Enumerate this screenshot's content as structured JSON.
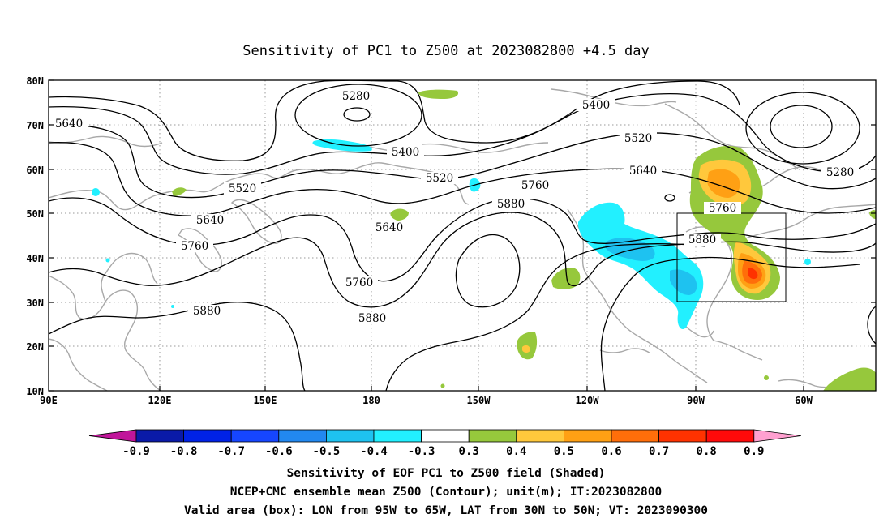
{
  "title": "Sensitivity of PC1 to Z500 at 2023082800 +4.5 day",
  "lat_labels": [
    "80N",
    "70N",
    "60N",
    "50N",
    "40N",
    "30N",
    "20N",
    "10N"
  ],
  "lon_labels": [
    "90E",
    "120E",
    "150E",
    "180",
    "150W",
    "120W",
    "90W",
    "60W"
  ],
  "contour_labels": [
    "5280",
    "5400",
    "5520",
    "5640",
    "5760",
    "5880"
  ],
  "colorbar": {
    "labels": [
      "-0.9",
      "-0.8",
      "-0.7",
      "-0.6",
      "-0.5",
      "-0.4",
      "-0.3",
      "0.3",
      "0.4",
      "0.5",
      "0.6",
      "0.7",
      "0.8",
      "0.9"
    ],
    "colors": [
      "#c0169a",
      "#0a1aa8",
      "#0022e6",
      "#1646ff",
      "#2288f0",
      "#1ec2f0",
      "#22f0ff",
      "#ffffff",
      "#96c83c",
      "#ffc83c",
      "#ffa014",
      "#ff6e0a",
      "#ff3200",
      "#ff0a0a",
      "#ffa0d0"
    ]
  },
  "valid_box": {
    "lon_from": "95W",
    "lon_to": "65W",
    "lat_from": "30N",
    "lat_to": "50N"
  },
  "footer": [
    "Sensitivity of EOF PC1 to Z500 field (Shaded)",
    "NCEP+CMC ensemble mean Z500 (Contour); unit(m); IT:2023082800",
    "Valid area (box): LON from 95W to 65W, LAT from 30N to 50N; VT: 2023090300"
  ],
  "colors": {
    "land": "#a8a8a8",
    "contour": "#000000",
    "grid": "#9a9a9a"
  }
}
